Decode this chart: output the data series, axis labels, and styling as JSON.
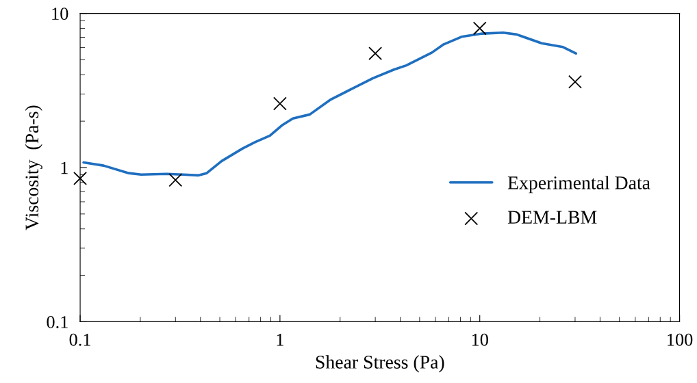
{
  "chart_data": {
    "type": "line",
    "xlabel": "Shear Stress (Pa)",
    "ylabel": "Viscosity  (Pa-s)",
    "log": "xy",
    "xlim": [
      0.1,
      100
    ],
    "ylim": [
      0.1,
      10
    ],
    "xticks": [
      0.1,
      1,
      10,
      100
    ],
    "yticks": [
      0.1,
      1,
      10
    ],
    "grid": false,
    "legend": "bottom right",
    "series": [
      {
        "name": "Experimental Data",
        "color": "#1f6fc0",
        "marker": "none",
        "x": [
          0.104,
          0.131,
          0.175,
          0.202,
          0.271,
          0.328,
          0.389,
          0.43,
          0.51,
          0.65,
          0.75,
          0.89,
          1.03,
          1.16,
          1.41,
          1.8,
          2.29,
          2.92,
          3.72,
          4.29,
          5.76,
          6.6,
          8.1,
          10.3,
          13.1,
          15.3,
          20.4,
          26.1,
          30.3
        ],
        "values": [
          1.08,
          1.03,
          0.92,
          0.9,
          0.91,
          0.9,
          0.89,
          0.92,
          1.1,
          1.33,
          1.46,
          1.61,
          1.89,
          2.08,
          2.21,
          2.77,
          3.24,
          3.8,
          4.32,
          4.6,
          5.57,
          6.3,
          7.05,
          7.4,
          7.5,
          7.3,
          6.4,
          6.05,
          5.5
        ]
      },
      {
        "name": "DEM-LBM",
        "type": "scatter",
        "color": "#000000",
        "marker": "cross",
        "x": [
          0.1,
          0.3,
          1,
          3,
          10,
          30
        ],
        "values": [
          0.85,
          0.83,
          2.6,
          5.5,
          8.0,
          3.6
        ]
      }
    ]
  }
}
